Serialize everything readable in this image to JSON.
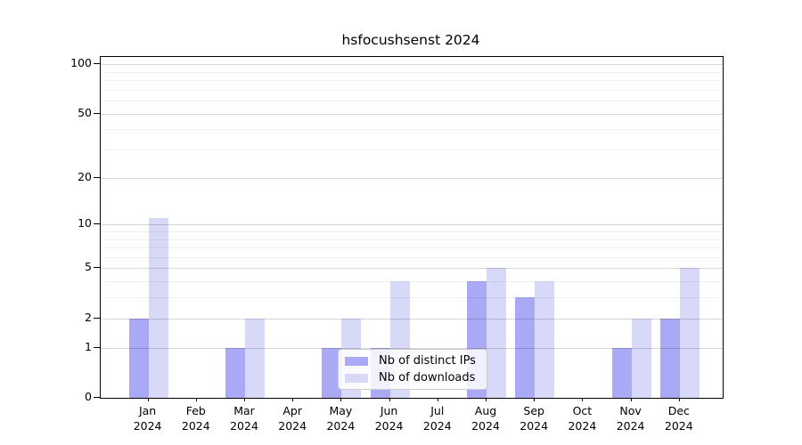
{
  "chart_data": {
    "type": "bar",
    "title": "hsfocushsenst 2024",
    "x_tick_labels": [
      {
        "month": "Jan",
        "year": "2024"
      },
      {
        "month": "Feb",
        "year": "2024"
      },
      {
        "month": "Mar",
        "year": "2024"
      },
      {
        "month": "Apr",
        "year": "2024"
      },
      {
        "month": "May",
        "year": "2024"
      },
      {
        "month": "Jun",
        "year": "2024"
      },
      {
        "month": "Jul",
        "year": "2024"
      },
      {
        "month": "Aug",
        "year": "2024"
      },
      {
        "month": "Sep",
        "year": "2024"
      },
      {
        "month": "Oct",
        "year": "2024"
      },
      {
        "month": "Nov",
        "year": "2024"
      },
      {
        "month": "Dec",
        "year": "2024"
      }
    ],
    "series": [
      {
        "name": "Nb of distinct IPs",
        "color": "#a9a9f5",
        "values": [
          2,
          0,
          1,
          0,
          1,
          1,
          0,
          4,
          3,
          0,
          1,
          2
        ]
      },
      {
        "name": "Nb of downloads",
        "color": "#d8d8f8",
        "values": [
          11,
          0,
          2,
          0,
          2,
          4,
          0,
          5,
          4,
          0,
          2,
          5
        ]
      }
    ],
    "y_axis": {
      "scale": "log10(1+v)",
      "range": [
        0,
        100
      ],
      "ticks": [
        0,
        1,
        2,
        5,
        10,
        20,
        50,
        100
      ],
      "minor_gridlines": [
        3,
        4,
        6,
        7,
        8,
        9,
        30,
        40,
        60,
        70,
        80,
        90
      ]
    },
    "grid": true,
    "legend": {
      "position": "inside-lower-middle",
      "items": [
        "Nb of distinct IPs",
        "Nb of downloads"
      ]
    }
  }
}
